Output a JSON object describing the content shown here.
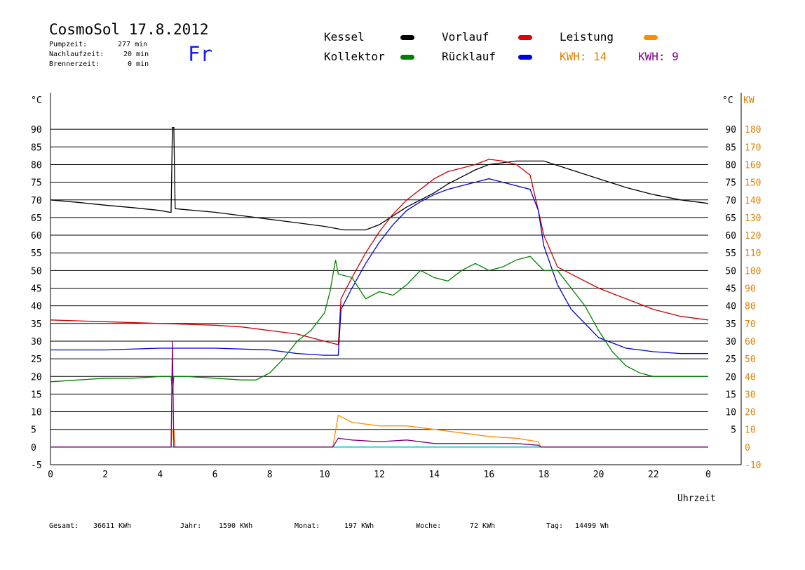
{
  "header": {
    "title": "CosmoSol 17.8.2012",
    "day": "Fr",
    "pumpzeit_label": "Pumpzeit:",
    "pumpzeit_value": "277 min",
    "nachlaufzeit_label": "Nachlaufzeit:",
    "nachlaufzeit_value": "20 min",
    "brennerzeit_label": "Brennerzeit:",
    "brennerzeit_value": "0 min"
  },
  "legend": {
    "kessel": "Kessel",
    "kollektor": "Kollektor",
    "vorlauf": "Vorlauf",
    "ruecklauf": "Rücklauf",
    "leistung": "Leistung",
    "kwh_a": "KWH: 14",
    "kwh_b": "KWH: 9"
  },
  "colors": {
    "kessel": "#000000",
    "kollektor": "#008000",
    "vorlauf": "#cc0000",
    "ruecklauf": "#0000cc",
    "leistung": "#ff8c00",
    "kwh_b": "#800080",
    "zero_line": "#00d0d0",
    "right_axis": "#e08000"
  },
  "footer": {
    "gesamt_label": "Gesamt:",
    "gesamt_value": "36611 KWh",
    "jahr_label": "Jahr:",
    "jahr_value": "1590 KWh",
    "monat_label": "Monat:",
    "monat_value": "197 KWh",
    "woche_label": "Woche:",
    "woche_value": "72 KWh",
    "tag_label": "Tag:",
    "tag_value": "14499 Wh"
  },
  "chart_data": {
    "type": "line",
    "xlabel": "Uhrzeit",
    "ylabel_left": "°C",
    "ylabel_right_a": "°C",
    "ylabel_right_b": "KW",
    "xlim": [
      0,
      24
    ],
    "ylim": [
      -5,
      95
    ],
    "y2lim": [
      -10,
      190
    ],
    "grid": true,
    "x_ticks": [
      "0",
      "2",
      "4",
      "6",
      "8",
      "10",
      "12",
      "14",
      "16",
      "18",
      "20",
      "22",
      "0"
    ],
    "y_ticks": [
      -5,
      0,
      5,
      10,
      15,
      20,
      25,
      30,
      35,
      40,
      45,
      50,
      55,
      60,
      65,
      70,
      75,
      80,
      85,
      90
    ],
    "y2_ticks": [
      -10,
      0,
      10,
      20,
      30,
      40,
      50,
      60,
      70,
      80,
      90,
      100,
      110,
      120,
      130,
      140,
      150,
      160,
      170,
      180
    ],
    "series": [
      {
        "name": "Kessel",
        "key": "kessel",
        "x": [
          0,
          1,
          2,
          3,
          4,
          4.35,
          4.4,
          4.45,
          4.5,
          4.55,
          6,
          7,
          8,
          9,
          10,
          10.7,
          11.5,
          12,
          12.5,
          13,
          13.5,
          14,
          14.5,
          15,
          15.5,
          16,
          16.5,
          17,
          17.5,
          18,
          19,
          20,
          21,
          22,
          23,
          24
        ],
        "y": [
          70,
          69.3,
          68.5,
          67.8,
          67,
          66.5,
          66.5,
          90.5,
          90.5,
          67.5,
          66.5,
          65.5,
          64.5,
          63.5,
          62.5,
          61.5,
          61.5,
          63,
          65.5,
          68,
          70,
          72,
          74.5,
          76.5,
          78.5,
          80,
          80.5,
          81,
          81,
          81,
          78.5,
          76,
          73.5,
          71.5,
          70,
          69
        ]
      },
      {
        "name": "Vorlauf",
        "key": "vorlauf",
        "x": [
          0,
          2,
          4,
          6,
          7,
          8,
          9,
          10,
          10.5,
          10.6,
          11,
          11.5,
          12,
          12.5,
          13,
          13.5,
          14,
          14.5,
          15,
          15.5,
          16,
          16.5,
          17,
          17.5,
          17.8,
          18,
          18.5,
          19,
          20,
          21,
          22,
          23,
          24
        ],
        "y": [
          36,
          35.5,
          35,
          34.5,
          34,
          33,
          32,
          30,
          29,
          42,
          48,
          55,
          61,
          66,
          70,
          73,
          76,
          78,
          79,
          80,
          81.5,
          81,
          80,
          77,
          67,
          60,
          51,
          49,
          45,
          42,
          39,
          37,
          36
        ]
      },
      {
        "name": "Rücklauf",
        "key": "ruecklauf",
        "x": [
          0,
          2,
          4,
          6,
          8,
          9,
          10,
          10.5,
          10.6,
          11,
          11.5,
          12,
          12.5,
          13,
          13.5,
          14,
          14.5,
          15,
          15.5,
          16,
          16.5,
          17,
          17.5,
          17.8,
          18,
          18.5,
          19,
          20,
          21,
          22,
          23,
          24
        ],
        "y": [
          27.5,
          27.5,
          28,
          28,
          27.5,
          26.5,
          26,
          26,
          39,
          45,
          52,
          58,
          63,
          67,
          69.5,
          71.5,
          73,
          74,
          75,
          76,
          75,
          74,
          73,
          67,
          57,
          46,
          39,
          31,
          28,
          27,
          26.5,
          26.5
        ]
      },
      {
        "name": "Kollektor",
        "key": "kollektor",
        "x": [
          0,
          1,
          2,
          3,
          4,
          4.4,
          4.45,
          4.5,
          4.55,
          5,
          6,
          7,
          7.5,
          8,
          8.5,
          9,
          9.5,
          10,
          10.2,
          10.4,
          10.5,
          11,
          11.5,
          12,
          12.5,
          13,
          13.5,
          14,
          14.5,
          15,
          15.5,
          16,
          16.5,
          17,
          17.5,
          18,
          18.5,
          19,
          19.5,
          20,
          20.5,
          21,
          21.5,
          22,
          23,
          24
        ],
        "y": [
          18.5,
          19,
          19.5,
          19.5,
          20,
          20,
          15,
          20,
          20,
          20,
          19.5,
          19,
          19,
          21,
          25,
          30,
          33,
          38,
          44,
          53,
          49,
          48,
          42,
          44,
          43,
          46,
          50,
          48,
          47,
          50,
          52,
          50,
          51,
          53,
          54,
          50,
          50,
          45,
          40,
          33,
          27,
          23,
          21,
          20,
          20,
          20
        ]
      },
      {
        "name": "Leistung",
        "key": "leistung",
        "axis": "right",
        "x": [
          0,
          4.4,
          4.45,
          4.5,
          4.55,
          10.3,
          10.5,
          11,
          12,
          13,
          14,
          15,
          16,
          17,
          17.8,
          17.9,
          24
        ],
        "y": [
          0,
          0,
          10,
          10,
          0,
          0,
          18,
          14,
          12,
          12,
          10,
          8,
          6,
          5,
          3,
          0,
          0
        ]
      },
      {
        "name": "KWH: 9",
        "key": "kwh_b",
        "axis": "right",
        "x": [
          0,
          4.4,
          4.45,
          4.5,
          4.55,
          10.3,
          10.5,
          11,
          12,
          13,
          14,
          15,
          16,
          17,
          17.8,
          17.9,
          24
        ],
        "y": [
          0,
          0,
          60,
          0,
          0,
          0,
          5,
          4,
          3,
          4,
          2,
          2,
          2,
          2,
          1,
          0,
          0
        ]
      }
    ]
  }
}
